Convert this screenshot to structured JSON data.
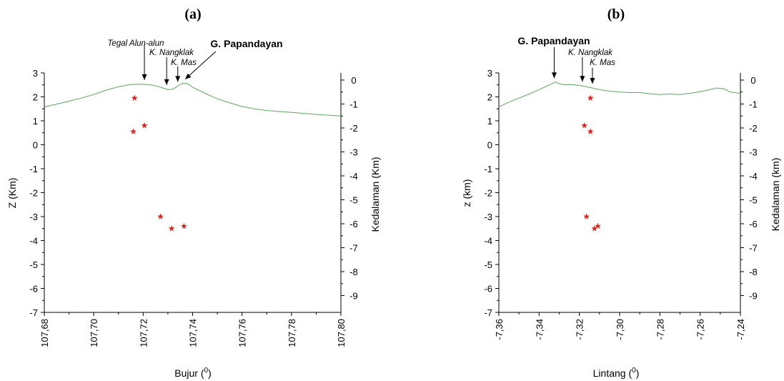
{
  "chart_data": [
    {
      "panel_label": "(a)",
      "type": "scatter",
      "xlabel": "Bujur (",
      "xlabel_sup": "0",
      "xlabel_close": ")",
      "ylabel": "Z (Km)",
      "y2label": "Kedalaman (Km)",
      "xlim": [
        107.68,
        107.8
      ],
      "ylim": [
        -7,
        3
      ],
      "x_ticks": [
        "107,68",
        "107,70",
        "107,72",
        "107,74",
        "107,76",
        "107,78",
        "107,80"
      ],
      "y_ticks": [
        "3",
        "2",
        "1",
        "0",
        "-1",
        "-2",
        "-3",
        "-4",
        "-5",
        "-6",
        "-7"
      ],
      "y2_ticks": [
        "0",
        "-1",
        "-2",
        "-3",
        "-4",
        "-5",
        "-6",
        "-7",
        "-8",
        "-9"
      ],
      "profile_color": "#5aa85a",
      "marker_color": "#e0201b",
      "topography": {
        "x": [
          107.68,
          107.685,
          107.69,
          107.695,
          107.7,
          107.705,
          107.71,
          107.715,
          107.72,
          107.723,
          107.726,
          107.728,
          107.73,
          107.732,
          107.734,
          107.736,
          107.738,
          107.74,
          107.745,
          107.75,
          107.755,
          107.76,
          107.765,
          107.77,
          107.78,
          107.79,
          107.8
        ],
        "y": [
          1.58,
          1.7,
          1.82,
          1.95,
          2.1,
          2.28,
          2.42,
          2.52,
          2.53,
          2.5,
          2.44,
          2.37,
          2.3,
          2.32,
          2.45,
          2.57,
          2.55,
          2.4,
          2.15,
          1.92,
          1.75,
          1.6,
          1.5,
          1.43,
          1.35,
          1.27,
          1.2
        ]
      },
      "hypocenters": {
        "x": [
          107.7165,
          107.716,
          107.7205,
          107.727,
          107.7315,
          107.7365
        ],
        "y": [
          1.95,
          0.55,
          0.8,
          -3.0,
          -3.5,
          -3.4
        ]
      },
      "annotations": [
        {
          "text": "Tegal Alun-alun",
          "x": 107.7205,
          "style": "italic"
        },
        {
          "text": "K. Nangklak",
          "x": 107.7295,
          "style": "italic"
        },
        {
          "text": "K. Mas",
          "x": 107.734,
          "style": "italic"
        },
        {
          "text": "G. Papandayan",
          "x": 107.737,
          "style": "bold"
        }
      ]
    },
    {
      "panel_label": "(b)",
      "type": "scatter",
      "xlabel": "Lintang (",
      "xlabel_sup": "0",
      "xlabel_close": ")",
      "ylabel": "z (km)",
      "y2label": "Kedalaman (km)",
      "xlim": [
        -7.36,
        -7.24
      ],
      "ylim": [
        -7,
        3
      ],
      "x_ticks": [
        "-7,36",
        "-7,34",
        "-7,32",
        "-7,30",
        "-7,28",
        "-7,26",
        "-7,24"
      ],
      "y_ticks": [
        "3",
        "2",
        "1",
        "0",
        "-1",
        "-2",
        "-3",
        "-4",
        "-5",
        "-6",
        "-7"
      ],
      "y2_ticks": [
        "0",
        "-1",
        "-2",
        "-3",
        "-4",
        "-5",
        "-6",
        "-7",
        "-8",
        "-9"
      ],
      "profile_color": "#5aa85a",
      "marker_color": "#e0201b",
      "topography": {
        "x": [
          -7.36,
          -7.355,
          -7.35,
          -7.345,
          -7.34,
          -7.335,
          -7.332,
          -7.33,
          -7.327,
          -7.325,
          -7.32,
          -7.315,
          -7.31,
          -7.305,
          -7.3,
          -7.295,
          -7.29,
          -7.285,
          -7.28,
          -7.275,
          -7.27,
          -7.265,
          -7.26,
          -7.255,
          -7.252,
          -7.248,
          -7.245,
          -7.24
        ],
        "y": [
          1.58,
          1.78,
          1.95,
          2.12,
          2.3,
          2.5,
          2.62,
          2.55,
          2.5,
          2.52,
          2.48,
          2.4,
          2.3,
          2.24,
          2.2,
          2.18,
          2.18,
          2.13,
          2.1,
          2.12,
          2.1,
          2.15,
          2.22,
          2.3,
          2.37,
          2.33,
          2.2,
          2.15
        ]
      },
      "hypocenters": {
        "x": [
          -7.3145,
          -7.3175,
          -7.3145,
          -7.3165,
          -7.3125,
          -7.3108
        ],
        "y": [
          1.95,
          0.8,
          0.55,
          -3.0,
          -3.5,
          -3.4
        ]
      },
      "annotations": [
        {
          "text": "G. Papandayan",
          "x": -7.3325,
          "style": "bold"
        },
        {
          "text": "K. Nangklak",
          "x": -7.3185,
          "style": "italic"
        },
        {
          "text": "K. Mas",
          "x": -7.3135,
          "style": "italic"
        }
      ]
    }
  ]
}
